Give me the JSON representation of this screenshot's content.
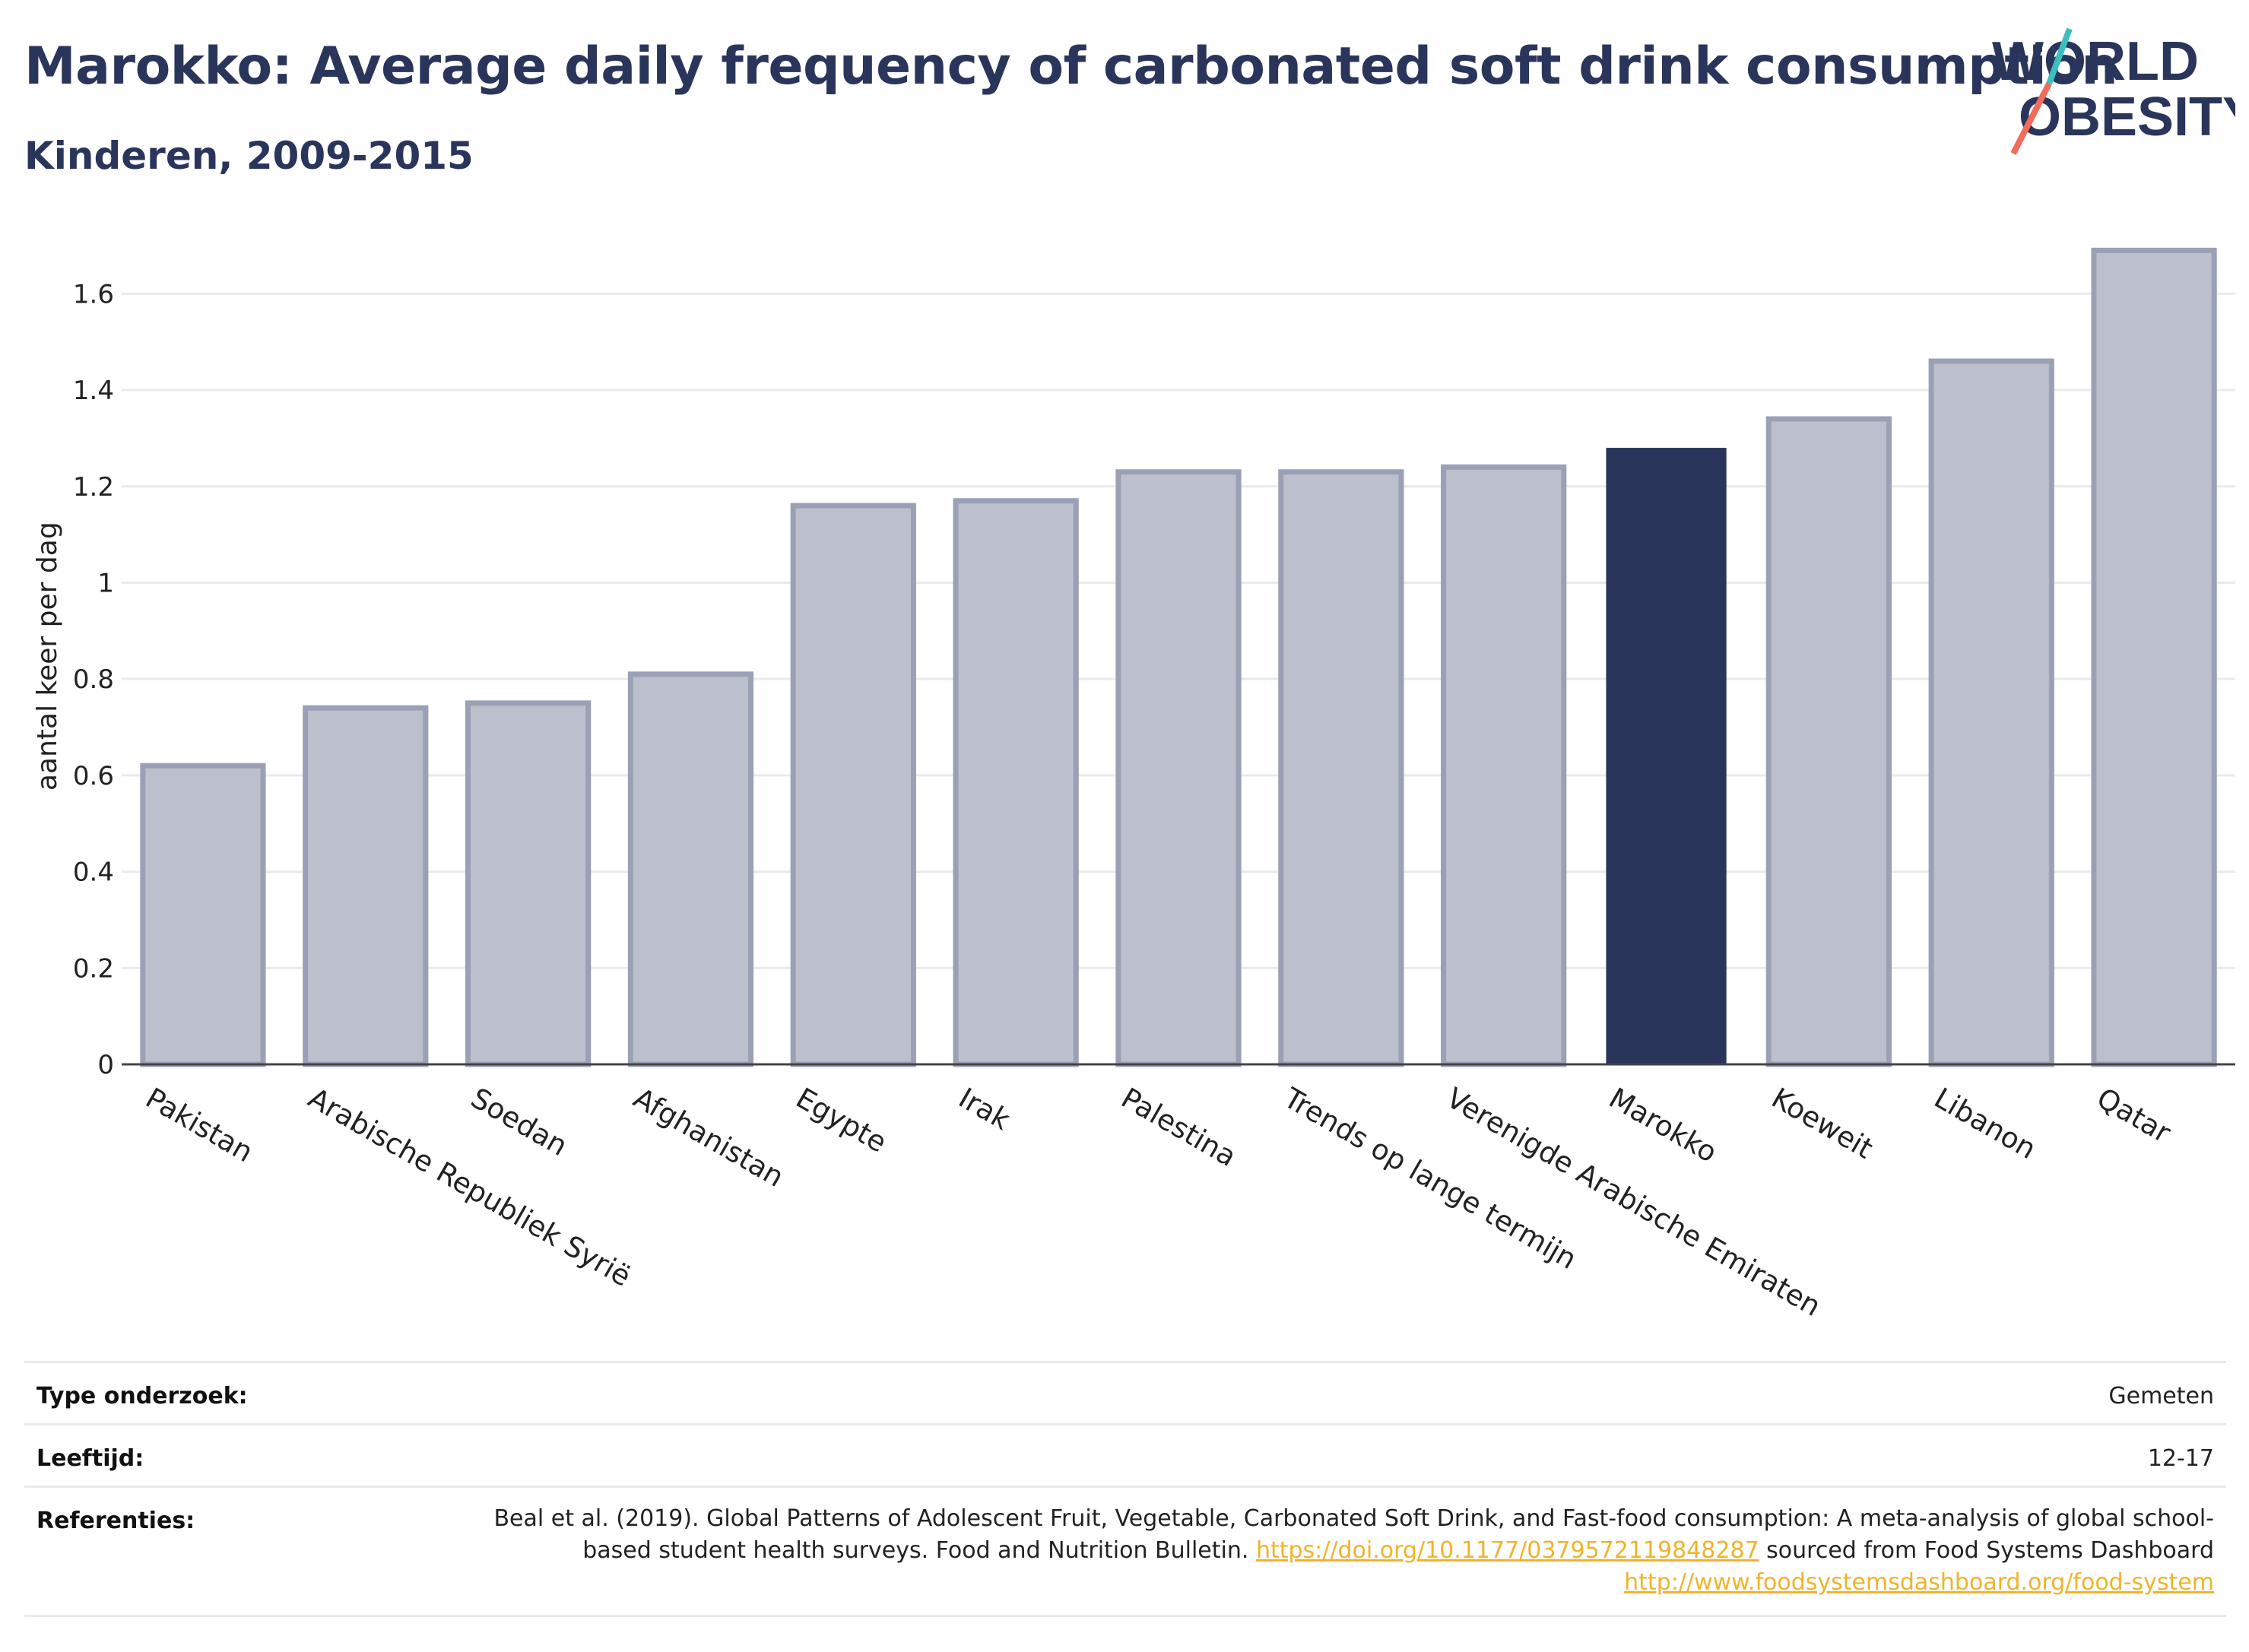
{
  "title": "Marokko: Average daily frequency of carbonated soft drink consumption",
  "subtitle": "Kinderen, 2009-2015",
  "logo": {
    "line1": "WORLD",
    "line2": "OBESITY",
    "colors": [
      "#2a355c",
      "#f26b5b",
      "#3dbfbf"
    ]
  },
  "chart_data": {
    "type": "bar",
    "categories": [
      "Pakistan",
      "Arabische Republiek Syrië",
      "Soedan",
      "Afghanistan",
      "Egypte",
      "Irak",
      "Palestina",
      "Trends op lange termijn",
      "Verenigde Arabische Emiraten",
      "Marokko",
      "Koeweit",
      "Libanon",
      "Qatar"
    ],
    "values": [
      0.62,
      0.74,
      0.75,
      0.81,
      1.16,
      1.17,
      1.23,
      1.23,
      1.24,
      1.28,
      1.34,
      1.46,
      1.69
    ],
    "highlight": "Marokko",
    "ylabel": "aantal keer per dag",
    "ylim": [
      0,
      1.7
    ],
    "yticks": [
      0,
      0.2,
      0.4,
      0.6,
      0.8,
      1,
      1.2,
      1.4,
      1.6
    ],
    "ytick_labels": [
      "0",
      "0.2",
      "0.4",
      "0.6",
      "0.8",
      "1",
      "1.2",
      "1.4",
      "1.6"
    ],
    "grid": true,
    "colors": {
      "highlight": "#2a355c",
      "other_fill": "#bcc0cd",
      "other_stroke": "#9aa0b5"
    }
  },
  "meta": {
    "study_type_label": "Type onderzoek:",
    "study_type_value": "Gemeten",
    "age_label": "Leeftijd:",
    "age_value": "12-17",
    "ref_label": "Referenties:",
    "ref_text_1": "Beal et al. (2019). Global Patterns of Adolescent Fruit, Vegetable, Carbonated Soft Drink, and Fast-food consumption: A meta-analysis of global school-based student health surveys. Food and Nutrition Bulletin.",
    "ref_link_1": "https://doi.org/10.1177/0379572119848287",
    "ref_text_2": "sourced from Food Systems Dashboard",
    "ref_link_2": "http://www.foodsystemsdashboard.org/food-system"
  }
}
